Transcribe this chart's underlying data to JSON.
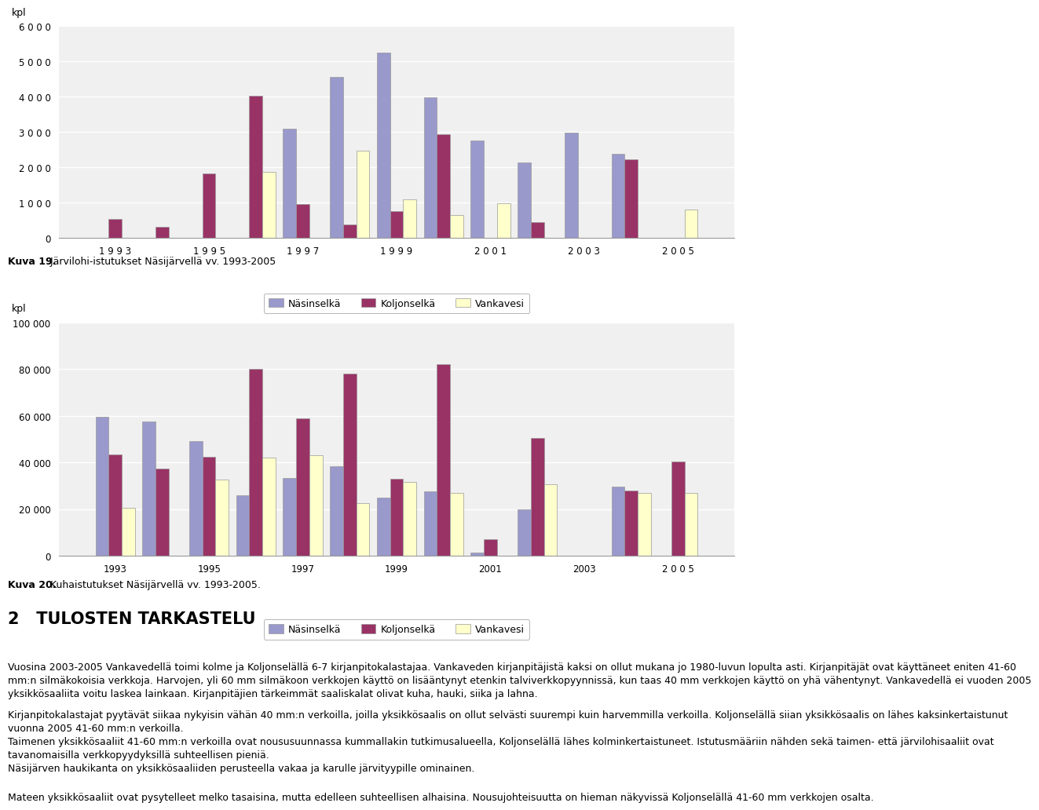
{
  "chart1": {
    "ylabel": "kpl",
    "years": [
      1993,
      1994,
      1995,
      1996,
      1997,
      1998,
      1999,
      2000,
      2001,
      2002,
      2003,
      2004,
      2005
    ],
    "nasinselka": [
      0,
      0,
      0,
      0,
      3100,
      4550,
      5250,
      3980,
      2750,
      2130,
      2980,
      2380,
      0
    ],
    "koljonselka": [
      530,
      310,
      1820,
      4020,
      950,
      370,
      760,
      2940,
      0,
      450,
      0,
      2230,
      0
    ],
    "vankavesi": [
      0,
      0,
      0,
      1870,
      0,
      2460,
      1100,
      640,
      970,
      0,
      0,
      0,
      790
    ],
    "ylim": [
      0,
      6000
    ],
    "yticks": [
      0,
      1000,
      2000,
      3000,
      4000,
      5000,
      6000
    ],
    "ytick_labels": [
      "0",
      "1 0 0 0",
      "2 0 0 0",
      "3 0 0 0",
      "4 0 0 0",
      "5 0 0 0",
      "6 0 0 0"
    ],
    "xtick_labels": [
      "1 9 9 3",
      "1 9 9 5",
      "1 9 9 7",
      "1 9 9 9",
      "2 0 0 1",
      "2 0 0 3",
      "2 0 0 5"
    ],
    "xtick_positions": [
      1993,
      1995,
      1997,
      1999,
      2001,
      2003,
      2005
    ],
    "caption_bold": "Kuva 19.",
    "caption_normal": " Järvilohi-istutukset Näsijärvellä vv. 1993-2005"
  },
  "chart2": {
    "ylabel": "kpl",
    "years": [
      1993,
      1994,
      1995,
      1996,
      1997,
      1998,
      1999,
      2000,
      2001,
      2002,
      2003,
      2004,
      2005
    ],
    "nasinselka": [
      59500,
      57500,
      49000,
      26000,
      33500,
      38500,
      25000,
      27500,
      1200,
      20000,
      0,
      29500,
      0
    ],
    "koljonselka": [
      43500,
      37500,
      42500,
      80000,
      59000,
      78000,
      33000,
      82000,
      7000,
      50500,
      0,
      28000,
      40500
    ],
    "vankavesi": [
      20500,
      0,
      32500,
      42000,
      43000,
      22500,
      31500,
      27000,
      0,
      30500,
      0,
      27000,
      27000
    ],
    "ylim": [
      0,
      100000
    ],
    "yticks": [
      0,
      20000,
      40000,
      60000,
      80000,
      100000
    ],
    "ytick_labels": [
      "0",
      "20 000",
      "40 000",
      "60 000",
      "80 000",
      "100 000"
    ],
    "xtick_labels": [
      "1993",
      "1995",
      "1997",
      "1999",
      "2001",
      "2003",
      "2 0 0 5"
    ],
    "xtick_positions": [
      1993,
      1995,
      1997,
      1999,
      2001,
      2003,
      2005
    ],
    "caption_bold": "Kuva 20.",
    "caption_normal": " Kuhaistutukset Näsijärvellä vv. 1993-2005."
  },
  "colors": {
    "nasinselka": "#9999CC",
    "koljonselka": "#993366",
    "vankavesi": "#FFFFCC"
  },
  "legend_labels": [
    "Näsinselkä",
    "Koljonselkä",
    "Vankavesi"
  ],
  "section_title": "2   TULOSTEN TARKASTELU",
  "para1": "Vuosina 2003-2005 Vankavedellä toimi kolme ja Koljonselällä 6-7 kirjanpitokalastajaa. Vankaveden kirjanpitäjistä kaksi on ollut mukana jo 1980-luvun lopulta asti. Kirjanpitäjät ovat käyttäneet eniten 41-60 mm:n silmäkokoisia verkkoja. Harvojen, yli 60 mm silmäkoon verkkojen käyttö on lisääntynyt etenkin talviverkkopyynnissä, kun taas 40 mm verkkojen käyttö on yhä vähentynyt. Vankavedellä ei vuoden 2005 yksikkösaaliita voitu laskea lainkaan. Kirjanpitäjien tärkeimmät saaliskalat olivat kuha, hauki, siika ja lahna.",
  "para2": "Kirjanpitokalastajat pyytävät siikaa nykyisin vähän 40 mm:n verkoilla, joilla yksikkösaalis on ollut selvästi suurempi kuin harvemmilla verkoilla. Koljonselällä siian yksikkösaalis on lähes kaksinkertaistunut vuonna 2005 41-60 mm:n verkoilla.\nTaimenen yksikkösaaliit 41-60 mm:n verkoilla ovat noususuunnassa kummallakin tutkimusalueella, Koljonselällä lähes kolminkertaistuneet. Istutusmääriin nähden sekä taimen- että järvilohisaaliit ovat tavanomaisilla verkkopyydyksillä suhteellisen pieniä.\nNäsijärven haukikanta on yksikkösaaliiden perusteella vakaa ja karulle järvityypille ominainen.",
  "para3": "Mateen yksikkösaaliit ovat pysytelleet melko tasaisina, mutta edelleen suhteellisen alhaisina. Nousujohteisuutta on hieman näkyvissä Koljonselällä 41-60 mm verkkojen osalta.",
  "background_color": "#FFFFFF"
}
